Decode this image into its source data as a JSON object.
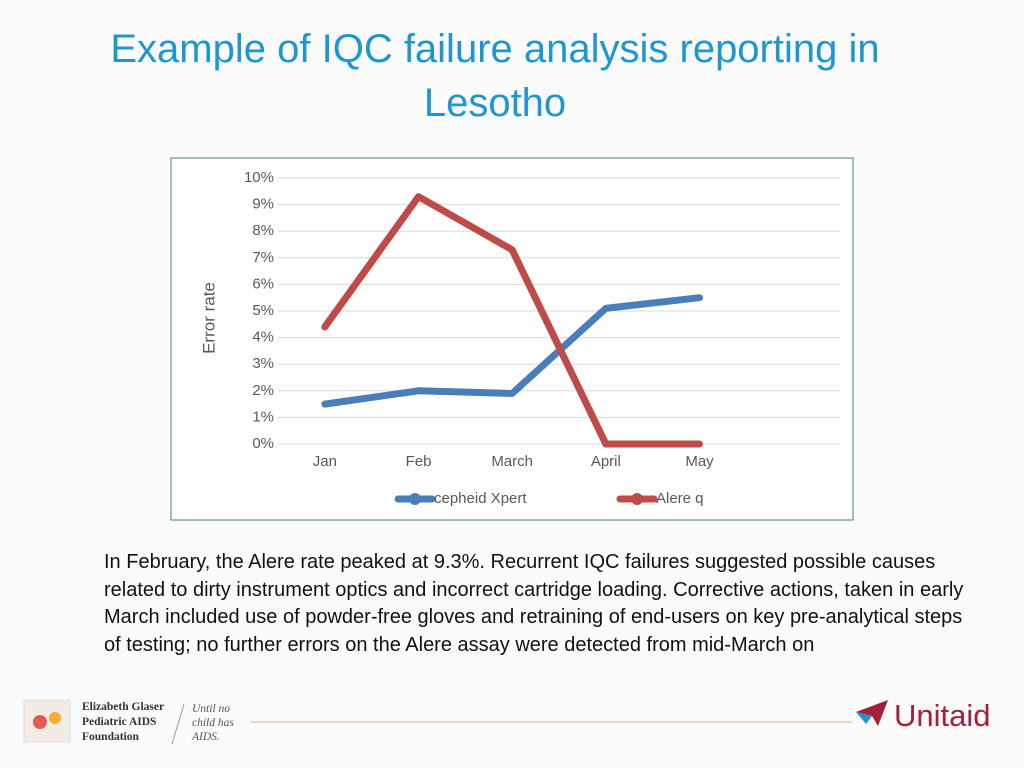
{
  "chart_data": {
    "type": "line",
    "title": "Example of IQC failure analysis reporting in Lesotho",
    "y_label": "Error rate",
    "categories": [
      "Jan",
      "Feb",
      "March",
      "April",
      "May",
      null
    ],
    "series": [
      {
        "name": "cepheid Xpert",
        "color": "#4a7ebb",
        "values": [
          1.5,
          2.0,
          1.9,
          5.1,
          5.5,
          null
        ]
      },
      {
        "name": "Alere q",
        "color": "#be4b48",
        "values": [
          4.4,
          9.3,
          7.3,
          0,
          0,
          null
        ]
      }
    ],
    "ylim": [
      0,
      10
    ],
    "yticks": [
      {
        "value": 0,
        "label": "0%"
      },
      {
        "value": 1,
        "label": "1%"
      },
      {
        "value": 2,
        "label": "2%"
      },
      {
        "value": 3,
        "label": "3%"
      },
      {
        "value": 4,
        "label": "4%"
      },
      {
        "value": 5,
        "label": "5%"
      },
      {
        "value": 6,
        "label": "6%"
      },
      {
        "value": 7,
        "label": "7%"
      },
      {
        "value": 8,
        "label": "8%"
      },
      {
        "value": 9,
        "label": "9%"
      },
      {
        "value": 10,
        "label": "10%"
      }
    ],
    "grid": true,
    "legend": "bottom"
  },
  "caption": "In February, the Alere rate peaked at 9.3%. Recurrent IQC failures suggested possible causes related to dirty instrument optics and incorrect cartridge loading. Corrective actions, taken in early March included use of powder-free gloves and retraining of end-users on key pre-analytical steps of testing; no further errors on the Alere assay were detected from mid-March on",
  "footer": {
    "egpaf": [
      "Elizabeth Glaser",
      "Pediatric AIDS",
      "Foundation"
    ],
    "tagline": [
      "Until no",
      "child has",
      "AIDS."
    ],
    "unitaid": "Unitaid"
  }
}
